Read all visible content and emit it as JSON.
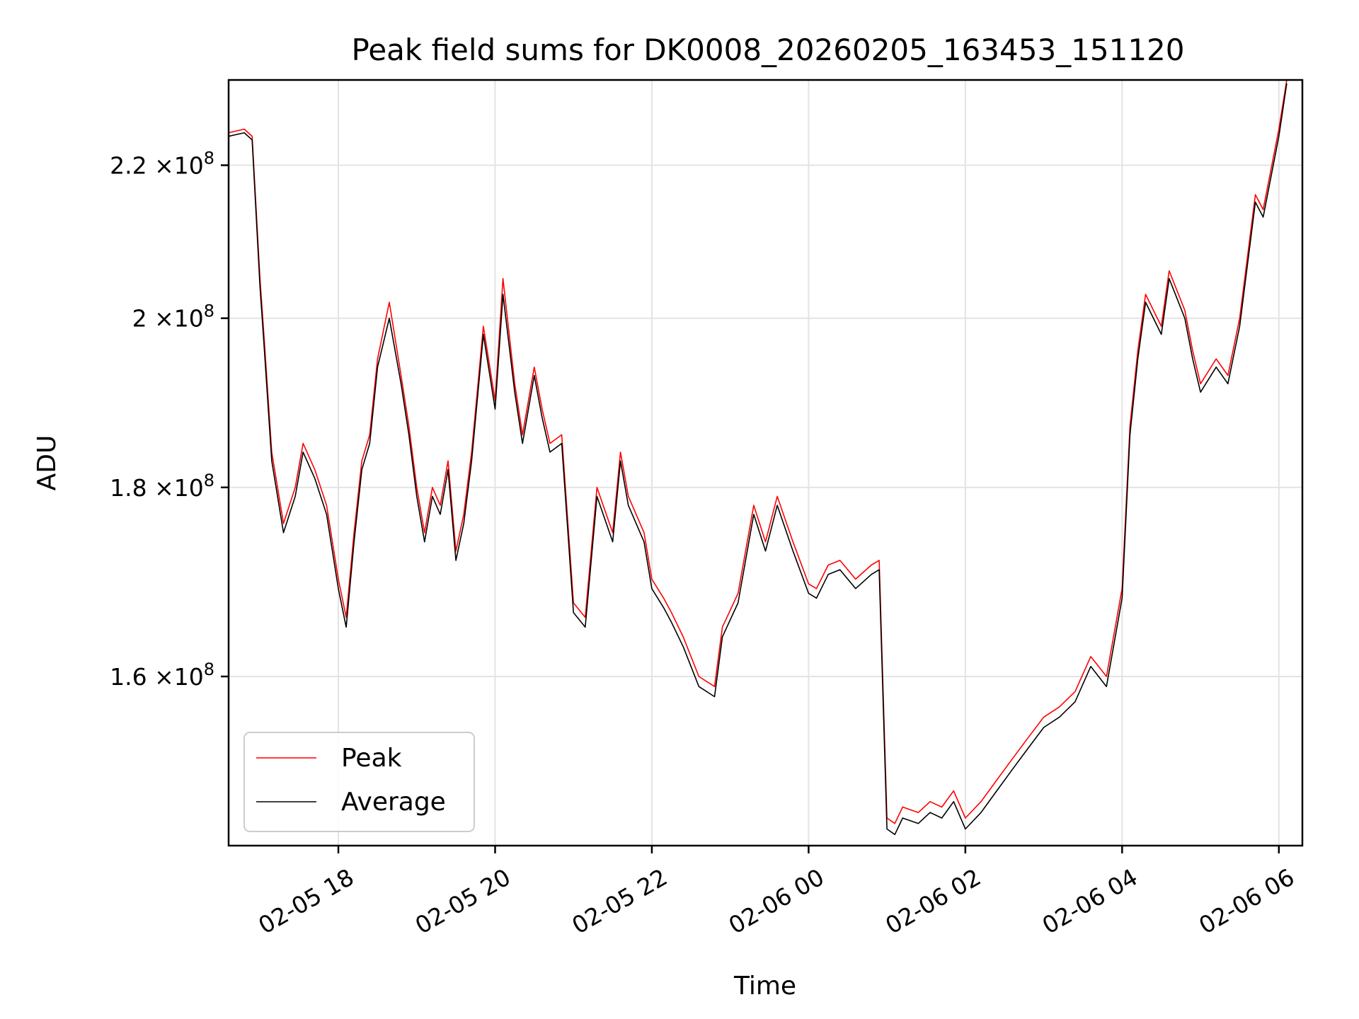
{
  "chart_data": {
    "type": "line",
    "title": "Peak field sums for DK0008_20260205_163453_151120",
    "xlabel": "Time",
    "ylabel": "ADU",
    "yscale": "log",
    "grid": true,
    "legend_position": "lower-left",
    "x_units": "hours since 2026-02-05 00:00",
    "xlim": [
      16.6,
      30.3
    ],
    "ylim": [
      144000000.0,
      232000000.0
    ],
    "x_ticks": [
      {
        "value": 18,
        "label": "02-05 18"
      },
      {
        "value": 20,
        "label": "02-05 20"
      },
      {
        "value": 22,
        "label": "02-05 22"
      },
      {
        "value": 24,
        "label": "02-06 00"
      },
      {
        "value": 26,
        "label": "02-06 02"
      },
      {
        "value": 28,
        "label": "02-06 04"
      },
      {
        "value": 30,
        "label": "02-06 06"
      }
    ],
    "y_ticks": [
      {
        "value": 160000000.0,
        "mantissa": "1.6",
        "exp": "8"
      },
      {
        "value": 180000000.0,
        "mantissa": "1.8",
        "exp": "8"
      },
      {
        "value": 200000000.0,
        "mantissa": "2",
        "exp": "8"
      },
      {
        "value": 220000000.0,
        "mantissa": "2.2",
        "exp": "8"
      }
    ],
    "tick_times": "×10",
    "series": [
      {
        "name": "Peak",
        "color": "#ff0000",
        "x": [
          16.6,
          16.8,
          16.9,
          17.0,
          17.05,
          17.15,
          17.3,
          17.45,
          17.55,
          17.7,
          17.85,
          18.0,
          18.1,
          18.2,
          18.3,
          18.4,
          18.5,
          18.65,
          18.8,
          18.9,
          19.0,
          19.1,
          19.2,
          19.3,
          19.4,
          19.5,
          19.6,
          19.7,
          19.85,
          20.0,
          20.1,
          20.25,
          20.35,
          20.5,
          20.6,
          20.7,
          20.85,
          21.0,
          21.15,
          21.3,
          21.5,
          21.6,
          21.7,
          21.9,
          22.0,
          22.15,
          22.25,
          22.4,
          22.6,
          22.8,
          22.9,
          23.1,
          23.3,
          23.45,
          23.6,
          23.8,
          24.0,
          24.1,
          24.25,
          24.4,
          24.6,
          24.8,
          24.9,
          25.0,
          25.1,
          25.2,
          25.4,
          25.55,
          25.7,
          25.85,
          26.0,
          26.2,
          26.4,
          26.6,
          26.8,
          27.0,
          27.2,
          27.4,
          27.6,
          27.7,
          27.8,
          28.0,
          28.1,
          28.2,
          28.3,
          28.5,
          28.6,
          28.8,
          28.9,
          29.0,
          29.2,
          29.35,
          29.5,
          29.7,
          29.8,
          30.0,
          30.1
        ],
        "values": [
          224500000.0,
          225000000.0,
          224000000.0,
          205000000.0,
          198000000.0,
          184000000.0,
          176000000.0,
          180000000.0,
          185000000.0,
          182000000.0,
          178000000.0,
          170000000.0,
          166000000.0,
          175000000.0,
          183000000.0,
          186000000.0,
          195000000.0,
          202000000.0,
          193000000.0,
          187000000.0,
          180000000.0,
          175000000.0,
          180000000.0,
          178000000.0,
          183000000.0,
          173000000.0,
          177000000.0,
          184000000.0,
          199000000.0,
          190000000.0,
          205000000.0,
          192000000.0,
          186000000.0,
          194000000.0,
          189000000.0,
          185000000.0,
          186000000.0,
          167500000.0,
          166000000.0,
          180000000.0,
          175000000.0,
          184000000.0,
          179000000.0,
          175000000.0,
          170000000.0,
          168000000.0,
          166500000.0,
          164000000.0,
          160000000.0,
          159000000.0,
          165000000.0,
          168500000.0,
          178000000.0,
          174000000.0,
          179000000.0,
          174000000.0,
          169500000.0,
          169000000.0,
          171500000.0,
          172000000.0,
          170000000.0,
          171500000.0,
          172000000.0,
          146500000.0,
          146000000.0,
          147500000.0,
          147000000.0,
          148000000.0,
          147500000.0,
          149000000.0,
          146500000.0,
          148000000.0,
          150000000.0,
          152000000.0,
          154000000.0,
          156000000.0,
          157000000.0,
          158500000.0,
          162000000.0,
          161000000.0,
          160000000.0,
          169000000.0,
          187000000.0,
          196000000.0,
          203000000.0,
          199000000.0,
          206000000.0,
          201000000.0,
          196000000.0,
          192000000.0,
          195000000.0,
          193000000.0,
          200000000.0,
          216000000.0,
          214000000.0,
          225000000.0,
          232000000.0
        ]
      },
      {
        "name": "Average",
        "color": "#000000",
        "x": [
          16.6,
          16.8,
          16.9,
          17.0,
          17.05,
          17.15,
          17.3,
          17.45,
          17.55,
          17.7,
          17.85,
          18.0,
          18.1,
          18.2,
          18.3,
          18.4,
          18.5,
          18.65,
          18.8,
          18.9,
          19.0,
          19.1,
          19.2,
          19.3,
          19.4,
          19.5,
          19.6,
          19.7,
          19.85,
          20.0,
          20.1,
          20.25,
          20.35,
          20.5,
          20.6,
          20.7,
          20.85,
          21.0,
          21.15,
          21.3,
          21.5,
          21.6,
          21.7,
          21.9,
          22.0,
          22.15,
          22.25,
          22.4,
          22.6,
          22.8,
          22.9,
          23.1,
          23.3,
          23.45,
          23.6,
          23.8,
          24.0,
          24.1,
          24.25,
          24.4,
          24.6,
          24.8,
          24.9,
          25.0,
          25.1,
          25.2,
          25.4,
          25.55,
          25.7,
          25.85,
          26.0,
          26.2,
          26.4,
          26.6,
          26.8,
          27.0,
          27.2,
          27.4,
          27.6,
          27.7,
          27.8,
          28.0,
          28.1,
          28.2,
          28.3,
          28.5,
          28.6,
          28.8,
          28.9,
          29.0,
          29.2,
          29.35,
          29.5,
          29.7,
          29.8,
          30.0,
          30.1
        ],
        "values": [
          224000000.0,
          224500000.0,
          223500000.0,
          204000000.0,
          197000000.0,
          183000000.0,
          175000000.0,
          179000000.0,
          184000000.0,
          181000000.0,
          177000000.0,
          169000000.0,
          165000000.0,
          174000000.0,
          182000000.0,
          185000000.0,
          194000000.0,
          200000000.0,
          192000000.0,
          186000000.0,
          179000000.0,
          174000000.0,
          179000000.0,
          177000000.0,
          182000000.0,
          172000000.0,
          176000000.0,
          183000000.0,
          198000000.0,
          189000000.0,
          203000000.0,
          191000000.0,
          185000000.0,
          193000000.0,
          188000000.0,
          184000000.0,
          185000000.0,
          166500000.0,
          165000000.0,
          179000000.0,
          174000000.0,
          183000000.0,
          178000000.0,
          174000000.0,
          169000000.0,
          167000000.0,
          165500000.0,
          163000000.0,
          159000000.0,
          158000000.0,
          164000000.0,
          167500000.0,
          177000000.0,
          173000000.0,
          178000000.0,
          173000000.0,
          168500000.0,
          168000000.0,
          170500000.0,
          171000000.0,
          169000000.0,
          170500000.0,
          171000000.0,
          145500000.0,
          145000000.0,
          146500000.0,
          146000000.0,
          147000000.0,
          146500000.0,
          148000000.0,
          145500000.0,
          147000000.0,
          149000000.0,
          151000000.0,
          153000000.0,
          155000000.0,
          156000000.0,
          157500000.0,
          161000000.0,
          160000000.0,
          159000000.0,
          168000000.0,
          186000000.0,
          195000000.0,
          202000000.0,
          198000000.0,
          205000000.0,
          200000000.0,
          195000000.0,
          191000000.0,
          194000000.0,
          192000000.0,
          199000000.0,
          215000000.0,
          213000000.0,
          224000000.0,
          231500000.0
        ]
      }
    ]
  }
}
